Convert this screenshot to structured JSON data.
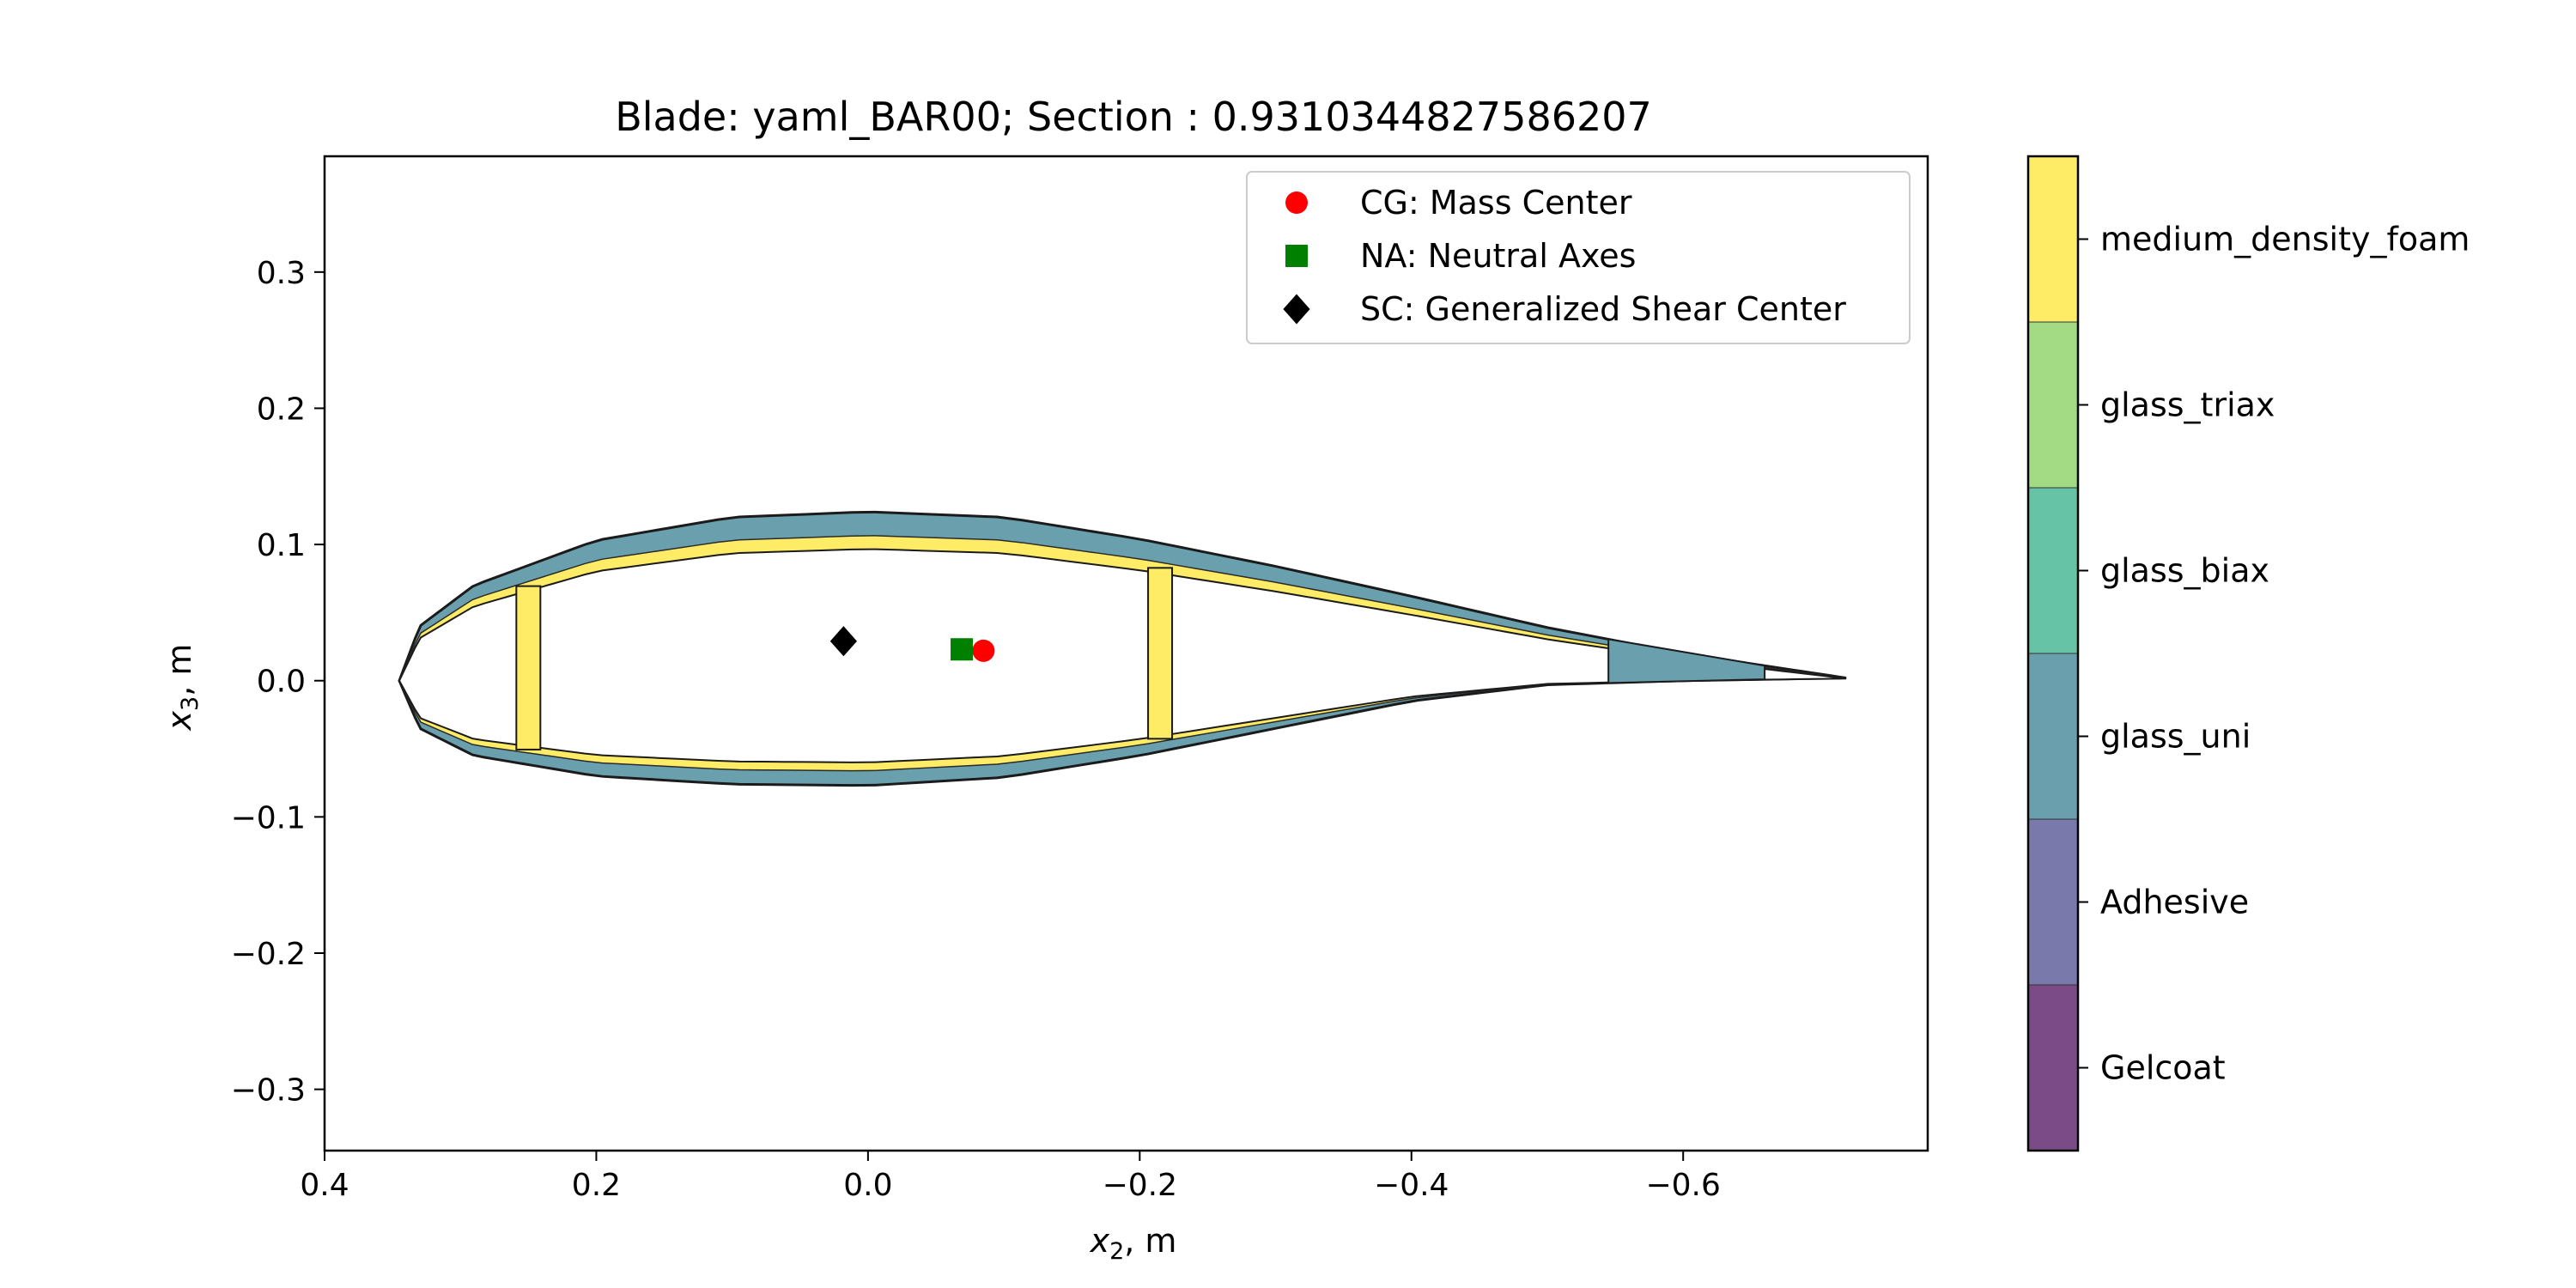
{
  "chart_data": {
    "type": "scatter",
    "title": "Blade: yaml_BAR00; Section : 0.9310344827586207",
    "xlabel": {
      "sym": "x",
      "sub": "2",
      "unit": ", m"
    },
    "ylabel": {
      "sym": "x",
      "sub": "3",
      "unit": ", m"
    },
    "xlim": [
      0.4,
      -0.78
    ],
    "ylim": [
      -0.345,
      0.385
    ],
    "xticks": [
      0.4,
      0.2,
      0.0,
      -0.2,
      -0.4,
      -0.6
    ],
    "xtick_labels": [
      "0.4",
      "0.2",
      "0.0",
      "−0.2",
      "−0.4",
      "−0.6"
    ],
    "yticks": [
      0.3,
      0.2,
      0.1,
      0.0,
      -0.1,
      -0.2,
      -0.3
    ],
    "ytick_labels": [
      "0.3",
      "0.2",
      "0.1",
      "0.0",
      "−0.1",
      "−0.2",
      "−0.3"
    ],
    "grid": false,
    "legend_position": "top-right",
    "points": [
      {
        "name": "CG: Mass Center",
        "x": -0.085,
        "y": 0.022,
        "marker": "circle",
        "color": "#ff0000"
      },
      {
        "name": "NA: Neutral Axes",
        "x": -0.069,
        "y": 0.023,
        "marker": "square",
        "color": "#008000"
      },
      {
        "name": "SC: Generalized Shear Center",
        "x": 0.018,
        "y": 0.029,
        "marker": "diamond",
        "color": "#000000"
      }
    ],
    "airfoil": {
      "leading_edge_x": 0.345,
      "trailing_edge_x": -0.72,
      "upper": [
        [
          0.345,
          0.0
        ],
        [
          0.33,
          0.04
        ],
        [
          0.29,
          0.07
        ],
        [
          0.2,
          0.103
        ],
        [
          0.1,
          0.12
        ],
        [
          0.0,
          0.124
        ],
        [
          -0.1,
          0.12
        ],
        [
          -0.2,
          0.104
        ],
        [
          -0.3,
          0.084
        ],
        [
          -0.4,
          0.062
        ],
        [
          -0.5,
          0.039
        ],
        [
          -0.6,
          0.02
        ],
        [
          -0.72,
          0.002
        ]
      ],
      "lower": [
        [
          0.345,
          0.0
        ],
        [
          0.33,
          -0.035
        ],
        [
          0.29,
          -0.055
        ],
        [
          0.2,
          -0.07
        ],
        [
          0.1,
          -0.076
        ],
        [
          0.0,
          -0.077
        ],
        [
          -0.1,
          -0.071
        ],
        [
          -0.2,
          -0.055
        ],
        [
          -0.3,
          -0.035
        ],
        [
          -0.4,
          -0.015
        ],
        [
          -0.5,
          -0.003
        ],
        [
          -0.6,
          0.0
        ],
        [
          -0.72,
          0.002
        ]
      ],
      "shear_webs_x": [
        0.25,
        -0.215
      ],
      "trailing_edge_fill_x": -0.545
    },
    "colorbar": {
      "categories": [
        "Gelcoat",
        "Adhesive",
        "glass_uni",
        "glass_biax",
        "glass_triax",
        "medium_density_foam"
      ],
      "colors": [
        "#7b4b87",
        "#7979ab",
        "#6a9fae",
        "#66c3a6",
        "#a2db84",
        "#feec67"
      ]
    }
  }
}
